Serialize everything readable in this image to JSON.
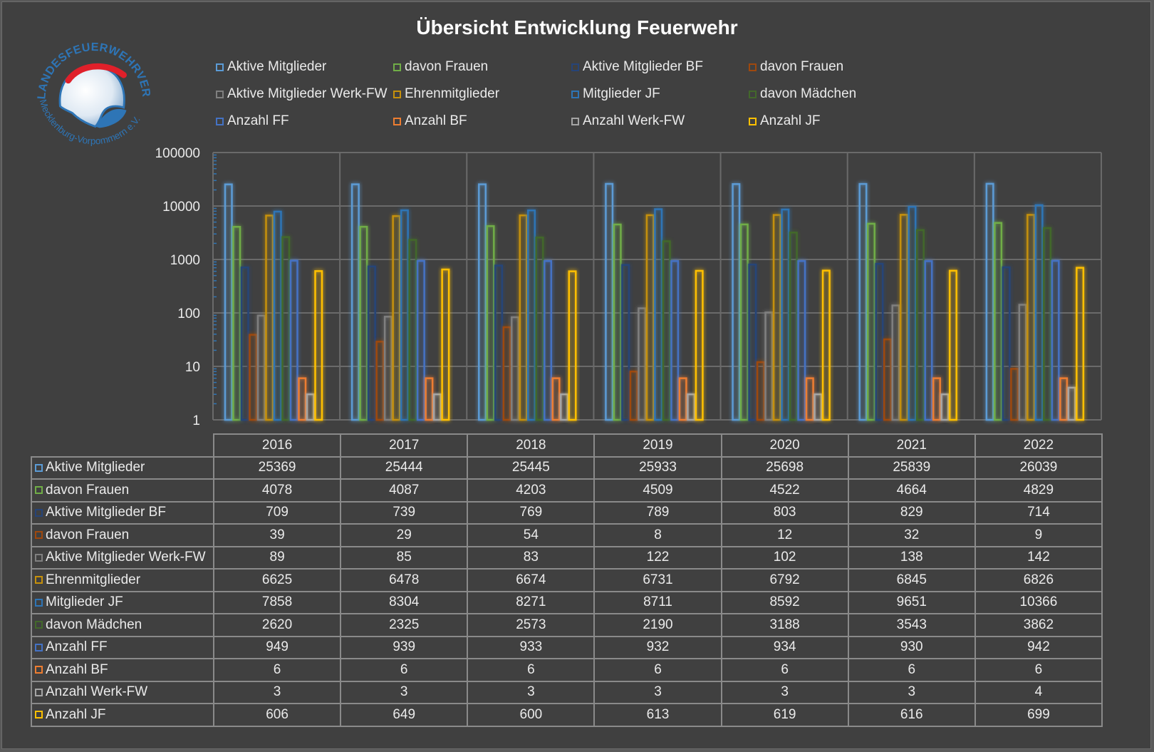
{
  "chart_data": {
    "type": "bar",
    "title": "Übersicht Entwicklung Feuerwehr",
    "categories": [
      "2016",
      "2017",
      "2018",
      "2019",
      "2020",
      "2021",
      "2022"
    ],
    "y_scale": "log",
    "ylim": [
      1,
      100000
    ],
    "y_ticks": [
      "1",
      "10",
      "100",
      "1000",
      "10000",
      "100000"
    ],
    "grid": true,
    "legend_position": "top",
    "data_table": true,
    "series": [
      {
        "name": "Aktive Mitglieder",
        "color": "#5b9bd5",
        "values": [
          25369,
          25444,
          25445,
          25933,
          25698,
          25839,
          26039
        ]
      },
      {
        "name": "davon Frauen",
        "color": "#70ad47",
        "values": [
          4078,
          4087,
          4203,
          4509,
          4522,
          4664,
          4829
        ]
      },
      {
        "name": "Aktive Mitglieder BF",
        "color": "#264478",
        "values": [
          709,
          739,
          769,
          789,
          803,
          829,
          714
        ]
      },
      {
        "name": "davon Frauen",
        "color": "#9e480e",
        "values": [
          39,
          29,
          54,
          8,
          12,
          32,
          9
        ]
      },
      {
        "name": "Aktive Mitglieder Werk-FW",
        "color": "#7f7f7f",
        "values": [
          89,
          85,
          83,
          122,
          102,
          138,
          142
        ]
      },
      {
        "name": "Ehrenmitglieder",
        "color": "#c5900b",
        "values": [
          6625,
          6478,
          6674,
          6731,
          6792,
          6845,
          6826
        ]
      },
      {
        "name": "Mitglieder JF",
        "color": "#2e75b6",
        "values": [
          7858,
          8304,
          8271,
          8711,
          8592,
          9651,
          10366
        ]
      },
      {
        "name": "davon Mädchen",
        "color": "#43682b",
        "values": [
          2620,
          2325,
          2573,
          2190,
          3188,
          3543,
          3862
        ]
      },
      {
        "name": "Anzahl FF",
        "color": "#4472c4",
        "values": [
          949,
          939,
          933,
          932,
          934,
          930,
          942
        ]
      },
      {
        "name": "Anzahl BF",
        "color": "#ed7d31",
        "values": [
          6,
          6,
          6,
          6,
          6,
          6,
          6
        ]
      },
      {
        "name": "Anzahl Werk-FW",
        "color": "#a5a5a5",
        "values": [
          3,
          3,
          3,
          3,
          3,
          3,
          4
        ]
      },
      {
        "name": "Anzahl JF",
        "color": "#ffc000",
        "values": [
          606,
          649,
          600,
          613,
          619,
          616,
          699
        ]
      }
    ]
  },
  "logo": {
    "text_top": "LANDESFEUERWEHRVERBAND",
    "text_bottom": "Mecklenburg-Vorpommern e.V."
  },
  "colors": {
    "background": "#404040",
    "gridline": "#6a6a6a",
    "text": "#eaeaea",
    "logo_blue": "#2e75b6",
    "logo_red": "#e0202a"
  }
}
